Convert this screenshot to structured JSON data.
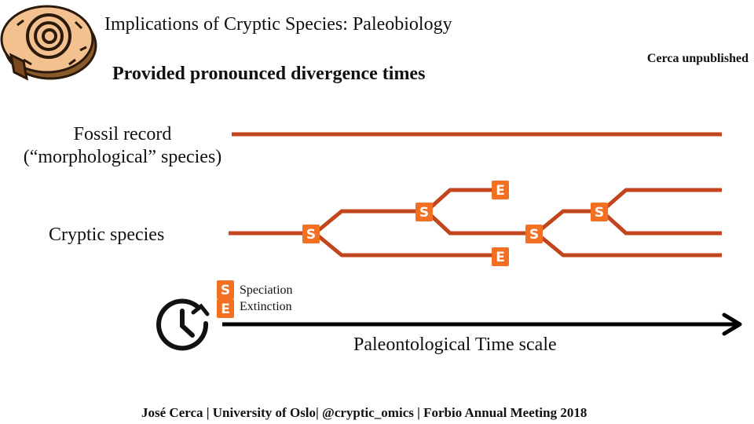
{
  "title": "Implications of Cryptic Species: Paleobiology",
  "subtitle": "Provided pronounced divergence times",
  "note": "Cerca unpublished",
  "rows": {
    "fossil_label": "Fossil record\n(“morphological” species)",
    "cryptic_label": "Cryptic species"
  },
  "legend": [
    {
      "symbol": "S",
      "label": "Speciation"
    },
    {
      "symbol": "E",
      "label": "Extinction"
    }
  ],
  "axis": {
    "label": "Paleontological Time scale"
  },
  "footer": "José Cerca | University of Oslo| @cryptic_omics | Forbio Annual Meeting 2018",
  "icons": [
    "fossil-ammonite-icon",
    "clock-icon",
    "arrow-right-icon"
  ],
  "colors": {
    "lineage": "#C2451E",
    "speciation_badge": "#F36F21",
    "extinction_badge": "#F36F21",
    "axis": "#000000"
  }
}
